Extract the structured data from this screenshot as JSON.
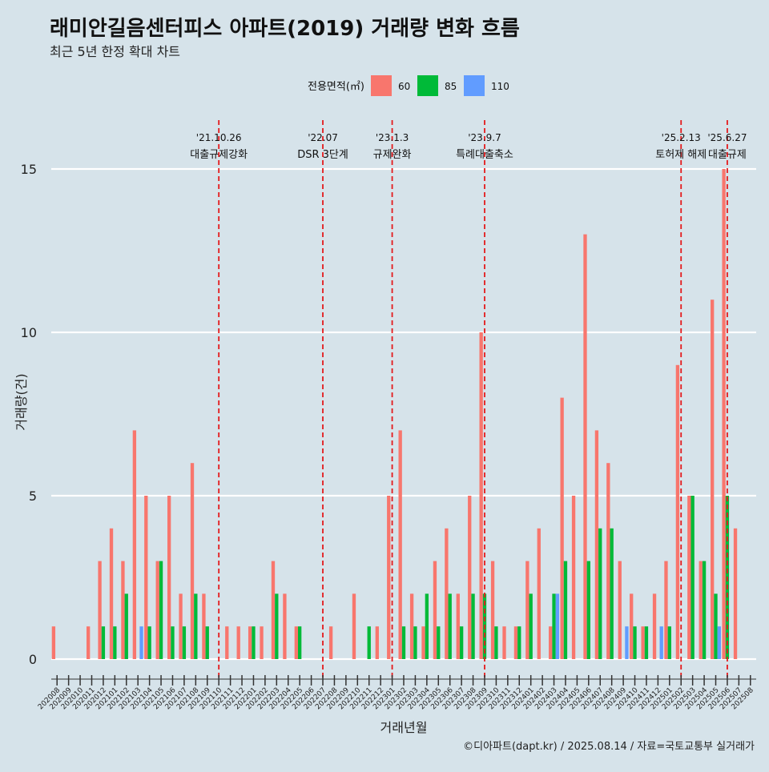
{
  "chart_data": {
    "type": "bar",
    "title": "래미안길음센터피스 아파트(2019) 거래량 변화 흐름",
    "subtitle": "최근 5년 한정 확대 차트",
    "xlabel": "거래년월",
    "ylabel": "거래량(건)",
    "legend_title": "전용면적(㎡)",
    "legend_position": "top",
    "ylim": [
      0,
      15
    ],
    "yticks": [
      0,
      5,
      10,
      15
    ],
    "categories": [
      "202008",
      "202009",
      "202010",
      "202011",
      "202012",
      "202101",
      "202102",
      "202103",
      "202104",
      "202105",
      "202106",
      "202107",
      "202108",
      "202109",
      "202110",
      "202111",
      "202112",
      "202201",
      "202202",
      "202203",
      "202204",
      "202205",
      "202206",
      "202207",
      "202208",
      "202209",
      "202210",
      "202211",
      "202212",
      "202301",
      "202302",
      "202303",
      "202304",
      "202305",
      "202306",
      "202307",
      "202308",
      "202309",
      "202310",
      "202311",
      "202312",
      "202401",
      "202402",
      "202403",
      "202404",
      "202405",
      "202406",
      "202407",
      "202408",
      "202409",
      "202410",
      "202411",
      "202412",
      "202501",
      "202502",
      "202503",
      "202504",
      "202505",
      "202506",
      "202507",
      "202508"
    ],
    "series": [
      {
        "name": "60",
        "color": "#f8766d",
        "values": [
          1,
          0,
          0,
          1,
          3,
          4,
          3,
          7,
          5,
          3,
          5,
          2,
          6,
          2,
          0,
          1,
          1,
          1,
          1,
          3,
          2,
          1,
          0,
          0,
          1,
          0,
          2,
          0,
          1,
          5,
          7,
          2,
          1,
          3,
          4,
          2,
          5,
          10,
          3,
          1,
          1,
          3,
          4,
          1,
          8,
          5,
          13,
          7,
          6,
          3,
          2,
          1,
          2,
          3,
          9,
          5,
          3,
          11,
          15,
          4,
          0
        ]
      },
      {
        "name": "85",
        "color": "#00ba38",
        "values": [
          0,
          0,
          0,
          0,
          1,
          1,
          2,
          0,
          1,
          3,
          1,
          1,
          2,
          1,
          0,
          0,
          0,
          1,
          0,
          2,
          0,
          1,
          0,
          0,
          0,
          0,
          0,
          1,
          0,
          0,
          1,
          1,
          2,
          1,
          2,
          1,
          2,
          2,
          1,
          0,
          1,
          2,
          0,
          2,
          3,
          0,
          3,
          4,
          4,
          0,
          1,
          1,
          0,
          1,
          0,
          5,
          3,
          2,
          5,
          0,
          0
        ]
      },
      {
        "name": "110",
        "color": "#619cff",
        "values": [
          0,
          0,
          0,
          0,
          0,
          0,
          0,
          1,
          0,
          0,
          0,
          0,
          0,
          0,
          0,
          0,
          0,
          0,
          0,
          0,
          0,
          0,
          0,
          0,
          0,
          0,
          0,
          0,
          0,
          0,
          0,
          0,
          0,
          0,
          0,
          0,
          0,
          0,
          0,
          0,
          0,
          0,
          0,
          2,
          0,
          0,
          0,
          0,
          0,
          1,
          0,
          0,
          1,
          0,
          0,
          0,
          0,
          1,
          0,
          0,
          0
        ]
      }
    ],
    "annotations": [
      {
        "date": "'21.10.26",
        "label": "대출규제강화",
        "x": "202110"
      },
      {
        "date": "'22.07",
        "label": "DSR 3단계",
        "x": "202207"
      },
      {
        "date": "'23.1.3",
        "label": "규제완화",
        "x": "202301"
      },
      {
        "date": "'23.9.7",
        "label": "특례대출축소",
        "x": "202309"
      },
      {
        "date": "'25.2.13",
        "label": "토허제 해제",
        "x": "202502"
      },
      {
        "date": "'25.6.27",
        "label": "대출규제",
        "x": "202506"
      }
    ],
    "grid": true
  },
  "footer": {
    "credit": "©디아파트(dapt.kr) / 2025.08.14 / 자료=국토교통부 실거래가"
  }
}
